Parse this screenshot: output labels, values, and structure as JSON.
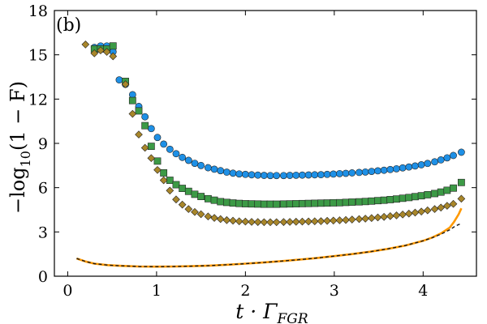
{
  "chart_data": {
    "type": "scatter",
    "panel_label": "(b)",
    "xlabel": {
      "base": "t · Γ",
      "sub": "FGR"
    },
    "ylabel": {
      "prefix": "−log",
      "sub": "10",
      "suffix": "(1 − F)"
    },
    "xlim": [
      -0.15,
      4.6
    ],
    "ylim": [
      0,
      18
    ],
    "xticks": [
      0,
      1,
      2,
      3,
      4
    ],
    "yticks": [
      0,
      3,
      6,
      9,
      12,
      15,
      18
    ],
    "grid": false,
    "colors": {
      "circles": "#1e90e6",
      "squares": "#3c9a46",
      "diamonds": "#a8862a",
      "line_orange": "#ff9900",
      "line_dark": "#1a1a1a",
      "axis": "#000000"
    },
    "series": [
      {
        "name": "circles",
        "marker": "circle",
        "x": [
          0.3,
          0.37,
          0.44,
          0.51,
          0.58,
          0.65,
          0.73,
          0.8,
          0.87,
          0.94,
          1.01,
          1.08,
          1.15,
          1.22,
          1.29,
          1.36,
          1.43,
          1.5,
          1.58,
          1.65,
          1.72,
          1.79,
          1.86,
          1.93,
          2.0,
          2.07,
          2.14,
          2.21,
          2.28,
          2.35,
          2.43,
          2.5,
          2.57,
          2.64,
          2.71,
          2.78,
          2.85,
          2.92,
          2.99,
          3.06,
          3.13,
          3.2,
          3.28,
          3.35,
          3.42,
          3.49,
          3.56,
          3.63,
          3.7,
          3.77,
          3.84,
          3.91,
          3.98,
          4.05,
          4.13,
          4.2,
          4.27,
          4.34,
          4.43
        ],
        "values": [
          15.5,
          15.6,
          15.6,
          15.2,
          13.3,
          13.0,
          12.3,
          11.5,
          10.8,
          10.0,
          9.4,
          8.95,
          8.6,
          8.3,
          8.05,
          7.85,
          7.65,
          7.5,
          7.35,
          7.25,
          7.15,
          7.05,
          6.98,
          6.93,
          6.9,
          6.87,
          6.85,
          6.83,
          6.82,
          6.82,
          6.82,
          6.83,
          6.84,
          6.85,
          6.86,
          6.87,
          6.88,
          6.9,
          6.92,
          6.95,
          6.97,
          7.0,
          7.03,
          7.06,
          7.1,
          7.14,
          7.18,
          7.23,
          7.28,
          7.34,
          7.4,
          7.47,
          7.55,
          7.64,
          7.75,
          7.88,
          8.02,
          8.18,
          8.4
        ]
      },
      {
        "name": "squares",
        "marker": "square",
        "x": [
          0.3,
          0.37,
          0.44,
          0.51,
          0.65,
          0.73,
          0.8,
          0.87,
          0.94,
          1.01,
          1.08,
          1.15,
          1.22,
          1.29,
          1.36,
          1.43,
          1.5,
          1.58,
          1.65,
          1.72,
          1.79,
          1.86,
          1.93,
          2.0,
          2.07,
          2.14,
          2.21,
          2.28,
          2.35,
          2.43,
          2.5,
          2.57,
          2.64,
          2.71,
          2.78,
          2.85,
          2.92,
          2.99,
          3.06,
          3.13,
          3.2,
          3.28,
          3.35,
          3.42,
          3.49,
          3.56,
          3.63,
          3.7,
          3.77,
          3.84,
          3.91,
          3.98,
          4.05,
          4.13,
          4.2,
          4.27,
          4.34,
          4.43
        ],
        "values": [
          15.4,
          15.4,
          15.4,
          15.6,
          13.2,
          11.9,
          11.2,
          10.2,
          8.8,
          7.8,
          7.0,
          6.5,
          6.2,
          5.95,
          5.75,
          5.55,
          5.4,
          5.25,
          5.15,
          5.05,
          5.0,
          4.96,
          4.93,
          4.91,
          4.9,
          4.89,
          4.88,
          4.88,
          4.88,
          4.89,
          4.9,
          4.91,
          4.92,
          4.93,
          4.94,
          4.95,
          4.96,
          4.97,
          4.98,
          5.0,
          5.02,
          5.04,
          5.06,
          5.09,
          5.12,
          5.15,
          5.19,
          5.23,
          5.28,
          5.33,
          5.39,
          5.45,
          5.52,
          5.6,
          5.7,
          5.82,
          5.97,
          6.35
        ]
      },
      {
        "name": "diamonds",
        "marker": "diamond",
        "x": [
          0.2,
          0.3,
          0.37,
          0.44,
          0.51,
          0.65,
          0.73,
          0.8,
          0.87,
          0.94,
          1.01,
          1.08,
          1.15,
          1.22,
          1.29,
          1.36,
          1.43,
          1.5,
          1.58,
          1.65,
          1.72,
          1.79,
          1.86,
          1.93,
          2.0,
          2.07,
          2.14,
          2.21,
          2.28,
          2.35,
          2.43,
          2.5,
          2.57,
          2.64,
          2.71,
          2.78,
          2.85,
          2.92,
          2.99,
          3.06,
          3.13,
          3.2,
          3.28,
          3.35,
          3.42,
          3.49,
          3.56,
          3.63,
          3.7,
          3.77,
          3.84,
          3.91,
          3.98,
          4.05,
          4.13,
          4.2,
          4.27,
          4.34,
          4.43
        ],
        "values": [
          15.7,
          15.1,
          15.3,
          15.2,
          14.9,
          13.0,
          11.0,
          9.6,
          8.7,
          8.0,
          7.2,
          6.5,
          5.8,
          5.2,
          4.85,
          4.55,
          4.35,
          4.2,
          4.05,
          3.95,
          3.87,
          3.8,
          3.76,
          3.72,
          3.7,
          3.68,
          3.67,
          3.66,
          3.66,
          3.66,
          3.67,
          3.68,
          3.69,
          3.7,
          3.71,
          3.72,
          3.73,
          3.75,
          3.77,
          3.79,
          3.81,
          3.84,
          3.87,
          3.9,
          3.94,
          3.98,
          4.02,
          4.07,
          4.12,
          4.18,
          4.24,
          4.31,
          4.38,
          4.46,
          4.55,
          4.65,
          4.77,
          4.9,
          5.25
        ]
      },
      {
        "name": "orange line",
        "marker": "line",
        "x": [
          0.1,
          0.2,
          0.3,
          0.45,
          0.6,
          0.8,
          1.0,
          1.2,
          1.4,
          1.6,
          1.8,
          2.0,
          2.2,
          2.4,
          2.6,
          2.8,
          3.0,
          3.2,
          3.4,
          3.6,
          3.8,
          4.0,
          4.1,
          4.2,
          4.3,
          4.35,
          4.4,
          4.43
        ],
        "values": [
          1.2,
          1.0,
          0.85,
          0.75,
          0.7,
          0.66,
          0.65,
          0.66,
          0.68,
          0.72,
          0.78,
          0.85,
          0.93,
          1.02,
          1.12,
          1.23,
          1.36,
          1.5,
          1.66,
          1.85,
          2.08,
          2.4,
          2.62,
          2.9,
          3.3,
          3.7,
          4.2,
          4.6
        ]
      },
      {
        "name": "dashed line",
        "marker": "dashed",
        "x": [
          0.1,
          0.2,
          0.3,
          0.45,
          0.6,
          0.8,
          1.0,
          1.2,
          1.4,
          1.6,
          1.8,
          2.0,
          2.2,
          2.4,
          2.6,
          2.8,
          3.0,
          3.2,
          3.4,
          3.6,
          3.8,
          4.0,
          4.1,
          4.2,
          4.3,
          4.35,
          4.4,
          4.43
        ],
        "values": [
          1.2,
          1.0,
          0.85,
          0.75,
          0.7,
          0.66,
          0.65,
          0.66,
          0.68,
          0.72,
          0.78,
          0.85,
          0.93,
          1.02,
          1.12,
          1.23,
          1.36,
          1.5,
          1.66,
          1.85,
          2.08,
          2.4,
          2.6,
          2.85,
          3.15,
          3.35,
          3.5,
          3.55
        ]
      }
    ]
  }
}
